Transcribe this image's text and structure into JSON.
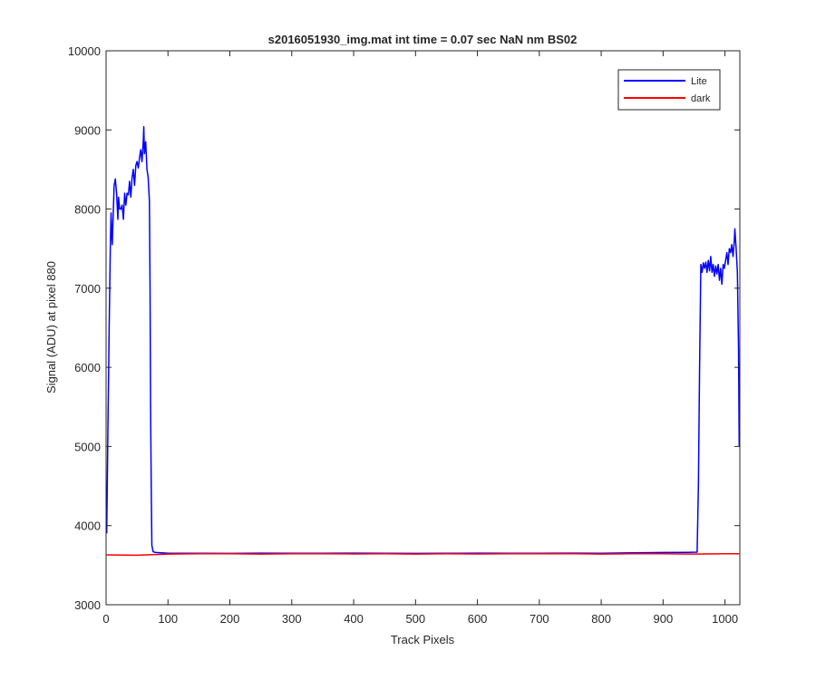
{
  "chart_data": {
    "type": "line",
    "title": "s2016051930_img.mat int time = 0.07 sec  NaN nm BS02",
    "xlabel": "Track Pixels",
    "ylabel": "Signal (ADU) at pixel 880",
    "xlim": [
      0,
      1024
    ],
    "ylim": [
      3000,
      10000
    ],
    "x_ticks": [
      0,
      100,
      200,
      300,
      400,
      500,
      600,
      700,
      800,
      900,
      1000
    ],
    "y_ticks": [
      3000,
      4000,
      5000,
      6000,
      7000,
      8000,
      9000,
      10000
    ],
    "grid": false,
    "legend_position": "top-right",
    "series": [
      {
        "name": "Lite",
        "color": "#0000ff",
        "points": [
          [
            1,
            3900
          ],
          [
            3,
            5200
          ],
          [
            5,
            6500
          ],
          [
            7,
            7600
          ],
          [
            8,
            7950
          ],
          [
            9,
            7700
          ],
          [
            10,
            7550
          ],
          [
            11,
            7800
          ],
          [
            13,
            8300
          ],
          [
            15,
            8380
          ],
          [
            17,
            8200
          ],
          [
            19,
            7870
          ],
          [
            20,
            8150
          ],
          [
            22,
            8000
          ],
          [
            24,
            8000
          ],
          [
            26,
            8050
          ],
          [
            28,
            7870
          ],
          [
            30,
            8200
          ],
          [
            32,
            8050
          ],
          [
            34,
            8200
          ],
          [
            36,
            8180
          ],
          [
            38,
            8350
          ],
          [
            40,
            8150
          ],
          [
            42,
            8400
          ],
          [
            44,
            8500
          ],
          [
            46,
            8300
          ],
          [
            48,
            8550
          ],
          [
            50,
            8600
          ],
          [
            52,
            8520
          ],
          [
            54,
            8650
          ],
          [
            56,
            8750
          ],
          [
            58,
            8600
          ],
          [
            60,
            8850
          ],
          [
            61,
            9040
          ],
          [
            62,
            8700
          ],
          [
            64,
            8850
          ],
          [
            66,
            8500
          ],
          [
            68,
            8400
          ],
          [
            70,
            8100
          ],
          [
            71,
            7000
          ],
          [
            72,
            5500
          ],
          [
            73,
            4500
          ],
          [
            74,
            3750
          ],
          [
            76,
            3670
          ],
          [
            80,
            3660
          ],
          [
            90,
            3655
          ],
          [
            100,
            3650
          ],
          [
            150,
            3650
          ],
          [
            200,
            3648
          ],
          [
            250,
            3652
          ],
          [
            300,
            3650
          ],
          [
            350,
            3650
          ],
          [
            400,
            3652
          ],
          [
            450,
            3650
          ],
          [
            500,
            3648
          ],
          [
            550,
            3650
          ],
          [
            600,
            3652
          ],
          [
            650,
            3650
          ],
          [
            700,
            3650
          ],
          [
            750,
            3652
          ],
          [
            800,
            3650
          ],
          [
            850,
            3655
          ],
          [
            900,
            3660
          ],
          [
            940,
            3662
          ],
          [
            955,
            3665
          ],
          [
            957,
            4500
          ],
          [
            959,
            6000
          ],
          [
            961,
            7300
          ],
          [
            963,
            7200
          ],
          [
            965,
            7320
          ],
          [
            967,
            7250
          ],
          [
            969,
            7330
          ],
          [
            971,
            7200
          ],
          [
            973,
            7350
          ],
          [
            975,
            7220
          ],
          [
            977,
            7400
          ],
          [
            979,
            7200
          ],
          [
            981,
            7300
          ],
          [
            983,
            7150
          ],
          [
            985,
            7280
          ],
          [
            987,
            7180
          ],
          [
            989,
            7300
          ],
          [
            991,
            7100
          ],
          [
            993,
            7250
          ],
          [
            995,
            7050
          ],
          [
            997,
            7300
          ],
          [
            999,
            7250
          ],
          [
            1001,
            7350
          ],
          [
            1003,
            7450
          ],
          [
            1005,
            7300
          ],
          [
            1007,
            7500
          ],
          [
            1009,
            7450
          ],
          [
            1011,
            7550
          ],
          [
            1013,
            7400
          ],
          [
            1015,
            7600
          ],
          [
            1016,
            7750
          ],
          [
            1018,
            7500
          ],
          [
            1020,
            7200
          ],
          [
            1022,
            6200
          ],
          [
            1023,
            5000
          ]
        ]
      },
      {
        "name": "dark",
        "color": "#ff0000",
        "points": [
          [
            1,
            3630
          ],
          [
            50,
            3625
          ],
          [
            100,
            3640
          ],
          [
            150,
            3645
          ],
          [
            200,
            3645
          ],
          [
            250,
            3640
          ],
          [
            300,
            3645
          ],
          [
            350,
            3645
          ],
          [
            400,
            3642
          ],
          [
            450,
            3645
          ],
          [
            500,
            3640
          ],
          [
            550,
            3645
          ],
          [
            600,
            3642
          ],
          [
            650,
            3645
          ],
          [
            700,
            3645
          ],
          [
            750,
            3645
          ],
          [
            800,
            3640
          ],
          [
            850,
            3645
          ],
          [
            900,
            3645
          ],
          [
            950,
            3640
          ],
          [
            1000,
            3645
          ],
          [
            1023,
            3645
          ]
        ]
      }
    ]
  }
}
